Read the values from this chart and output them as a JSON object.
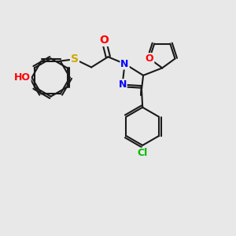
{
  "background_color": "#e8e8e8",
  "bond_color": "#1a1a1a",
  "bond_width": 1.5,
  "atom_colors": {
    "O": "#ff0000",
    "S": "#ccaa00",
    "N": "#0000ff",
    "Cl": "#00bb00",
    "H": "#778888",
    "C": "#1a1a1a"
  },
  "font_size": 9,
  "fig_width": 3.0,
  "fig_height": 3.0,
  "dpi": 100
}
